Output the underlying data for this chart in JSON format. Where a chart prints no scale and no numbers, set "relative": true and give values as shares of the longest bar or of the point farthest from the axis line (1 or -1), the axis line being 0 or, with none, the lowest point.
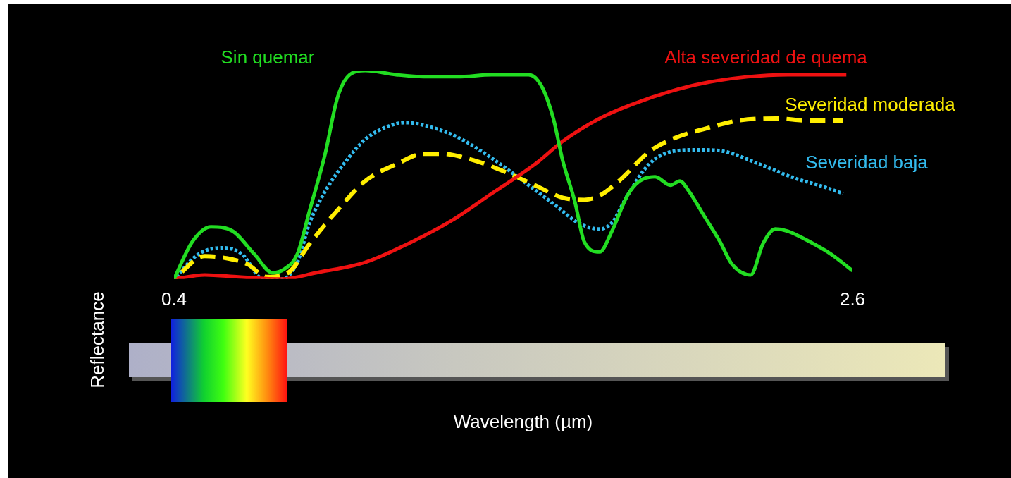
{
  "chart_data": {
    "type": "line",
    "relative": true,
    "annotations": [
      "Wavelength (µm)"
    ],
    "ylabel": "Reflectance",
    "xlim": [
      0.4,
      2.6
    ],
    "xticks": [
      0.4,
      2.6
    ],
    "grid": false,
    "marker": "none",
    "series": [
      {
        "name": "Sin quemar",
        "color": "#22dd22",
        "line_style": "solid",
        "x": [
          0.4,
          0.46,
          0.52,
          0.59,
          0.66,
          0.72,
          0.76,
          0.8,
          0.84,
          0.89,
          0.93,
          0.97,
          1.02,
          1.12,
          1.21,
          1.32,
          1.43,
          1.55,
          1.59,
          1.63,
          1.66,
          1.7,
          1.73,
          1.78,
          1.82,
          1.87,
          1.91,
          1.96,
          2.01,
          2.04,
          2.07,
          2.12,
          2.17,
          2.21,
          2.27,
          2.31,
          2.35,
          2.39,
          2.46,
          2.53,
          2.6
        ],
        "values": [
          0,
          0.18,
          0.25,
          0.23,
          0.12,
          0.03,
          0.05,
          0.12,
          0.33,
          0.6,
          0.87,
          0.98,
          1,
          0.98,
          0.97,
          0.97,
          0.98,
          0.98,
          0.93,
          0.77,
          0.57,
          0.37,
          0.18,
          0.13,
          0.23,
          0.4,
          0.47,
          0.49,
          0.45,
          0.47,
          0.42,
          0.3,
          0.18,
          0.07,
          0.02,
          0.17,
          0.24,
          0.23,
          0.18,
          0.12,
          0.04
        ]
      },
      {
        "name": "Alta severidad de quema",
        "color": "#ee1111",
        "line_style": "solid",
        "x": [
          0.4,
          0.5,
          0.61,
          0.75,
          0.86,
          1.02,
          1.16,
          1.3,
          1.43,
          1.57,
          1.66,
          1.78,
          1.89,
          2.01,
          2.12,
          2.26,
          2.39,
          2.58
        ],
        "values": [
          0,
          0.02,
          0.01,
          0,
          0.03,
          0.08,
          0.17,
          0.28,
          0.41,
          0.55,
          0.66,
          0.77,
          0.84,
          0.9,
          0.94,
          0.97,
          0.98,
          0.98
        ]
      },
      {
        "name": "Severidad moderada",
        "color": "#ffee00",
        "line_style": "dashed",
        "x": [
          0.4,
          0.5,
          0.57,
          0.64,
          0.7,
          0.77,
          0.84,
          0.93,
          1.02,
          1.12,
          1.21,
          1.27,
          1.37,
          1.48,
          1.57,
          1.66,
          1.73,
          1.78,
          1.85,
          1.94,
          2.03,
          2.12,
          2.23,
          2.35,
          2.46,
          2.57
        ],
        "values": [
          0,
          0.11,
          0.1,
          0.07,
          0.01,
          0.03,
          0.17,
          0.33,
          0.47,
          0.55,
          0.6,
          0.6,
          0.57,
          0.51,
          0.45,
          0.39,
          0.38,
          0.4,
          0.48,
          0.61,
          0.68,
          0.72,
          0.76,
          0.77,
          0.76,
          0.76
        ]
      },
      {
        "name": "Severidad baja",
        "color": "#33bbee",
        "line_style": "dotted",
        "x": [
          0.4,
          0.48,
          0.56,
          0.62,
          0.69,
          0.75,
          0.8,
          0.84,
          0.89,
          0.96,
          1.02,
          1.09,
          1.15,
          1.23,
          1.32,
          1.43,
          1.55,
          1.64,
          1.71,
          1.78,
          1.82,
          1.87,
          1.94,
          2.01,
          2.1,
          2.19,
          2.3,
          2.42,
          2.49,
          2.57
        ],
        "values": [
          0,
          0.12,
          0.15,
          0.12,
          0,
          0,
          0.08,
          0.27,
          0.42,
          0.57,
          0.67,
          0.73,
          0.75,
          0.73,
          0.68,
          0.58,
          0.45,
          0.35,
          0.27,
          0.24,
          0.27,
          0.4,
          0.55,
          0.61,
          0.62,
          0.61,
          0.55,
          0.48,
          0.45,
          0.41
        ]
      }
    ]
  }
}
